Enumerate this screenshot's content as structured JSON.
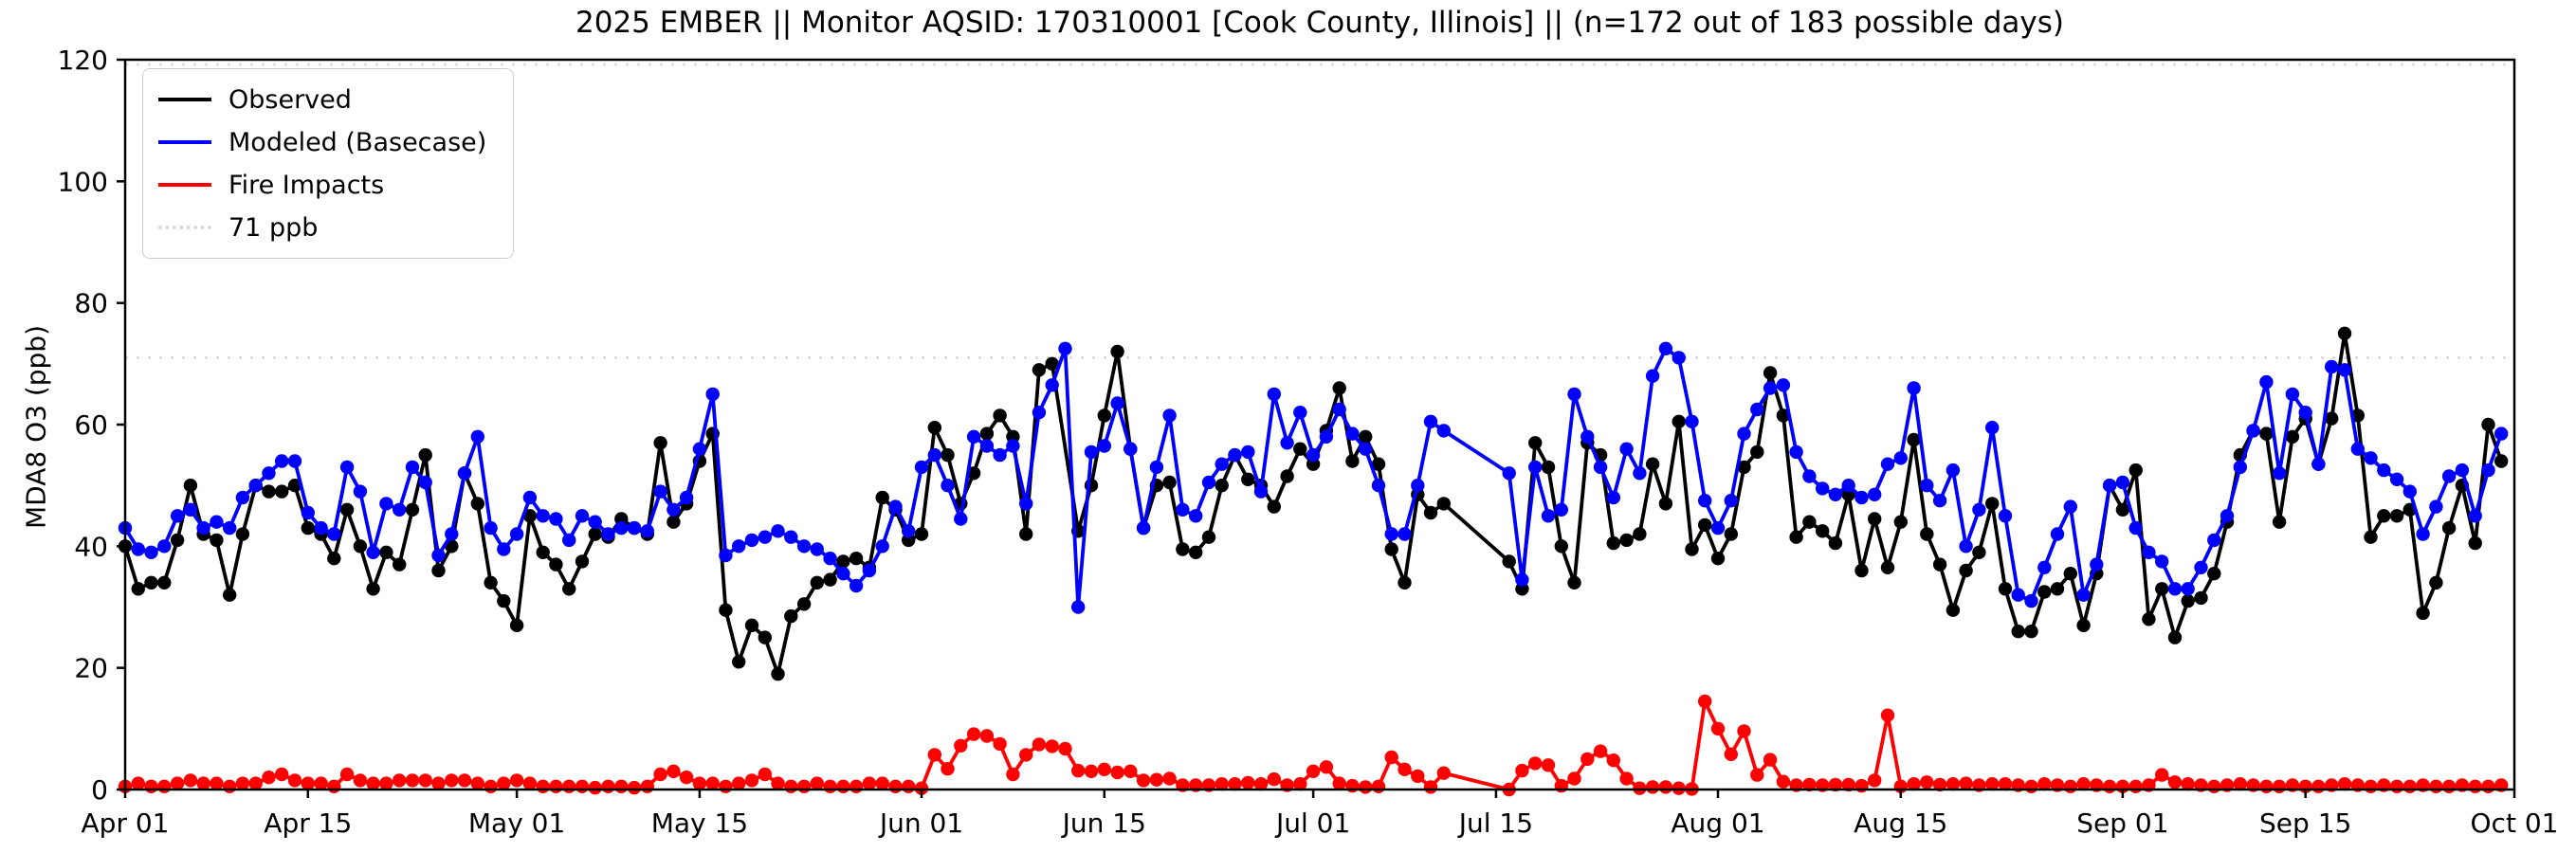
{
  "title": "2025 EMBER || Monitor AQSID: 170310001 [Cook County, Illinois] || (n=172 out of 183 possible days)",
  "legend": {
    "observed": "Observed",
    "modeled": "Modeled (Basecase)",
    "fire": "Fire Impacts",
    "threshold": "71 ppb"
  },
  "axes": {
    "y_label": "MDA8 O3 (ppb)",
    "y_ticks": [
      0,
      20,
      40,
      60,
      80,
      100,
      120
    ],
    "y_range": [
      0,
      120
    ],
    "x_ticks": [
      {
        "day": 0,
        "label": "Apr 01"
      },
      {
        "day": 14,
        "label": "Apr 15"
      },
      {
        "day": 30,
        "label": "May 01"
      },
      {
        "day": 44,
        "label": "May 15"
      },
      {
        "day": 61,
        "label": "Jun 01"
      },
      {
        "day": 75,
        "label": "Jun 15"
      },
      {
        "day": 91,
        "label": "Jul 01"
      },
      {
        "day": 105,
        "label": "Jul 15"
      },
      {
        "day": 122,
        "label": "Aug 01"
      },
      {
        "day": 136,
        "label": "Aug 15"
      },
      {
        "day": 153,
        "label": "Sep 01"
      },
      {
        "day": 167,
        "label": "Sep 15"
      },
      {
        "day": 183,
        "label": "Oct 01"
      }
    ],
    "x_total_days": 183
  },
  "chart_data": {
    "type": "line",
    "title": "2025 EMBER || Monitor AQSID: 170310001 [Cook County, Illinois] || (n=172 out of 183 possible days)",
    "xlabel": "",
    "ylabel": "MDA8 O3 (ppb)",
    "ylim": [
      0,
      120
    ],
    "start_date": "2025-04-01",
    "end_date": "2025-09-30",
    "threshold": {
      "value": 71,
      "label": "71 ppb",
      "color": "#d9d9d9"
    },
    "legend_position": "upper left",
    "grid": false,
    "series": [
      {
        "name": "Observed",
        "color": "#000000",
        "values": [
          40,
          33,
          34,
          34,
          41,
          50,
          42,
          41,
          32,
          42,
          50,
          49,
          49,
          50,
          43,
          42,
          38,
          46,
          40,
          33,
          39,
          37,
          46,
          55,
          36,
          40,
          52,
          47,
          34,
          31,
          27,
          45,
          39,
          37,
          33,
          37.5,
          42,
          41.5,
          44.5,
          43,
          42,
          57,
          44,
          47,
          54,
          58.5,
          29.5,
          21,
          27,
          25,
          19,
          28.5,
          30.5,
          34,
          34.5,
          37.5,
          38,
          36.5,
          48,
          46,
          41,
          42,
          59.5,
          55,
          47,
          52,
          58.5,
          61.5,
          58,
          42,
          69,
          70,
          null,
          42.5,
          50,
          61.5,
          72,
          56,
          43,
          50,
          50.5,
          39.5,
          39,
          41.5,
          50,
          55,
          51,
          50,
          46.5,
          51.5,
          56,
          53.5,
          59,
          66,
          54,
          58,
          53.5,
          39.5,
          34,
          48.5,
          45.5,
          47,
          null,
          null,
          null,
          null,
          37.5,
          33,
          57,
          53,
          40,
          34,
          57,
          55,
          40.5,
          41,
          42,
          53.5,
          47,
          60.5,
          39.5,
          43.5,
          38,
          42,
          53,
          55.5,
          68.5,
          61.5,
          41.5,
          44,
          42.5,
          40.5,
          48.5,
          36,
          44.5,
          36.5,
          44,
          57.5,
          42,
          37,
          29.5,
          36,
          39,
          47,
          33,
          26,
          26,
          32.5,
          33,
          35.5,
          27,
          35.5,
          50,
          46,
          52.5,
          28,
          33,
          25,
          31,
          31.5,
          35.5,
          44,
          55,
          59,
          58.5,
          44,
          58,
          61,
          53.5,
          61,
          75,
          61.5,
          41.5,
          45,
          45,
          46,
          29,
          34,
          43,
          50,
          40.5,
          60,
          54
        ]
      },
      {
        "name": "Modeled (Basecase)",
        "color": "#0000ff",
        "values": [
          43,
          39.5,
          39,
          40,
          45,
          46,
          43,
          44,
          43,
          48,
          50,
          52,
          54,
          54,
          45.5,
          43,
          42,
          53,
          49,
          39,
          47,
          46,
          53,
          50.5,
          38.5,
          42,
          52,
          58,
          43,
          39.5,
          42,
          48,
          45,
          44.5,
          41,
          45,
          44,
          42,
          43,
          43,
          42.5,
          49,
          46,
          48,
          56,
          65,
          38.5,
          40,
          41,
          41.5,
          42.5,
          41.5,
          40,
          39.5,
          38,
          35.5,
          33.5,
          36,
          40,
          46.5,
          42.5,
          53,
          55,
          50,
          44.5,
          58,
          56.5,
          55,
          56.5,
          47,
          62,
          66.5,
          72.5,
          30,
          55.5,
          56.5,
          63.5,
          56,
          43,
          53,
          61.5,
          46,
          45,
          50.5,
          53.5,
          55,
          55.5,
          49,
          65,
          57,
          62,
          55,
          58,
          62.5,
          58.5,
          56,
          50,
          42,
          42,
          50,
          60.5,
          59,
          null,
          null,
          null,
          null,
          52,
          34.5,
          53,
          45,
          46,
          65,
          58,
          53,
          48,
          56,
          52,
          68,
          72.5,
          71,
          60.5,
          47.5,
          43,
          47.5,
          58.5,
          62.5,
          66,
          66.5,
          55.5,
          51.5,
          49.5,
          48.5,
          50,
          48,
          48.5,
          53.5,
          54.5,
          66,
          50,
          47.5,
          52.5,
          40,
          46,
          59.5,
          45,
          32,
          31,
          36.5,
          42,
          46.5,
          32,
          37,
          50,
          50.5,
          43,
          39,
          37.5,
          33,
          33,
          36.5,
          41,
          45,
          53,
          59,
          67,
          52,
          65,
          62,
          53.5,
          69.5,
          69,
          56,
          54.5,
          52.5,
          51,
          49,
          42,
          46.5,
          51.5,
          52.5,
          45,
          52.5,
          58.5
        ]
      },
      {
        "name": "Fire Impacts",
        "color": "#ff0000",
        "values": [
          0.5,
          1,
          0.5,
          0.5,
          1,
          1.5,
          1,
          1,
          0.5,
          1,
          1,
          2,
          2.5,
          1.5,
          1,
          1,
          0.5,
          2.5,
          1.5,
          1,
          1,
          1.5,
          1.5,
          1.5,
          1,
          1.5,
          1.5,
          1,
          0.5,
          1,
          1.5,
          1,
          0.5,
          0.5,
          0.5,
          0.5,
          0.3,
          0.5,
          0.5,
          0.3,
          0.5,
          2.5,
          3,
          2,
          1,
          1,
          0.5,
          1,
          1.5,
          2.5,
          1,
          0.5,
          0.5,
          1,
          0.5,
          0.5,
          0.5,
          1,
          1,
          0.5,
          0.5,
          0.2,
          5.7,
          3.4,
          7.2,
          9.1,
          8.8,
          7.5,
          2.5,
          5.7,
          7.4,
          7.1,
          6.7,
          3.1,
          3,
          3.3,
          2.8,
          3,
          1.5,
          1.6,
          1.8,
          0.7,
          0.7,
          0.7,
          0.9,
          0.9,
          1.1,
          0.9,
          1.7,
          0.7,
          0.9,
          3,
          3.7,
          1,
          0.6,
          0.4,
          0.5,
          5.3,
          3.3,
          2.2,
          0.4,
          2.7,
          null,
          null,
          null,
          null,
          0,
          3.1,
          4.3,
          4,
          0.6,
          1.8,
          5,
          6.3,
          4.8,
          1.8,
          0.2,
          0.4,
          0.4,
          0.2,
          0.1,
          14.5,
          10,
          5.8,
          9.6,
          2.4,
          4.9,
          1.3,
          0.7,
          0.8,
          0.7,
          0.8,
          0.8,
          0.6,
          1.5,
          12.2,
          0.5,
          0.9,
          1.2,
          0.8,
          0.9,
          1,
          0.7,
          0.9,
          0.9,
          0.7,
          0.5,
          0.9,
          0.7,
          0.5,
          0.9,
          0.7,
          0.5,
          0.5,
          0.5,
          0.7,
          2.4,
          1.2,
          0.9,
          0.7,
          0.5,
          0.7,
          0.9,
          0.7,
          0.5,
          0.5,
          0.7,
          0.5,
          0.5,
          0.7,
          0.9,
          0.7,
          0.5,
          0.7,
          0.5,
          0.5,
          0.7,
          0.5,
          0.5,
          0.7,
          0.5,
          0.5,
          0.7
        ]
      }
    ]
  }
}
